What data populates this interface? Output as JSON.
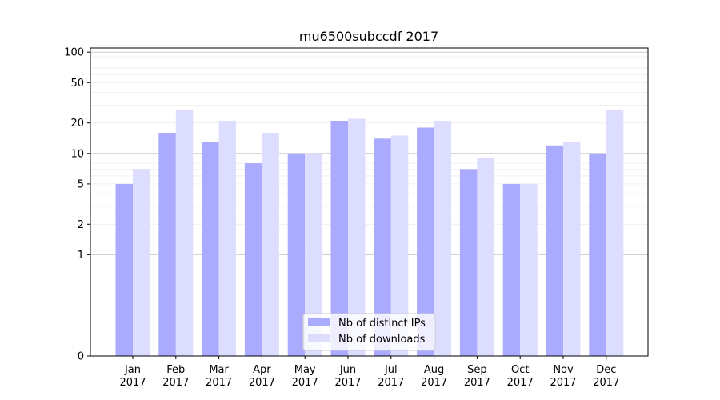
{
  "chart_data": {
    "type": "bar",
    "title": "mu6500subccdf 2017",
    "xlabel": "",
    "ylabel": "",
    "categories": [
      [
        "Jan",
        "2017"
      ],
      [
        "Feb",
        "2017"
      ],
      [
        "Mar",
        "2017"
      ],
      [
        "Apr",
        "2017"
      ],
      [
        "May",
        "2017"
      ],
      [
        "Jun",
        "2017"
      ],
      [
        "Jul",
        "2017"
      ],
      [
        "Aug",
        "2017"
      ],
      [
        "Sep",
        "2017"
      ],
      [
        "Oct",
        "2017"
      ],
      [
        "Nov",
        "2017"
      ],
      [
        "Dec",
        "2017"
      ]
    ],
    "series": [
      {
        "name": "Nb of distinct IPs",
        "color": "#aaaaff",
        "values": [
          5,
          16,
          13,
          8,
          10,
          21,
          14,
          18,
          7,
          5,
          12,
          10
        ]
      },
      {
        "name": "Nb of downloads",
        "color": "#ddddff",
        "values": [
          7,
          27,
          21,
          16,
          10,
          22,
          15,
          21,
          9,
          5,
          13,
          27
        ]
      }
    ],
    "yscale": "symlog",
    "ylim": [
      0,
      110
    ],
    "yticks": [
      0,
      1,
      2,
      5,
      10,
      20,
      50,
      100
    ],
    "grid": true,
    "legend_position": "bottom-center"
  }
}
